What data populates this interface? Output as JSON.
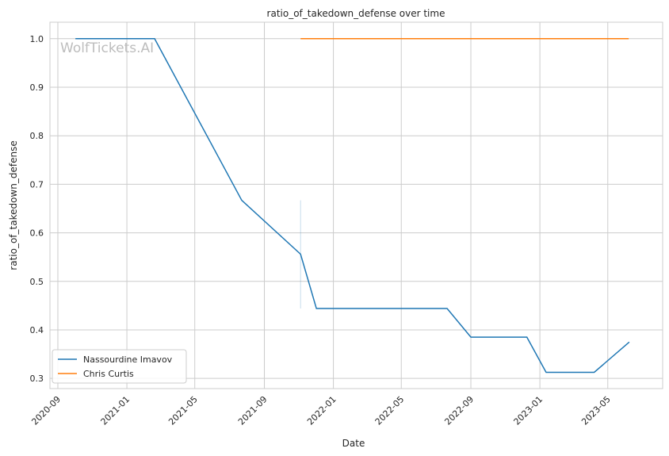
{
  "chart_data": {
    "type": "line",
    "title": "ratio_of_takedown_defense over time",
    "xlabel": "Date",
    "ylabel": "ratio_of_takedown_defense",
    "watermark": "WolfTickets.AI",
    "xlim": [
      "2020-08-18",
      "2023-08-06"
    ],
    "ylim": [
      0.279,
      1.034
    ],
    "grid": true,
    "legend_placement": "lower-left",
    "x_ticks": [
      "2020-09",
      "2021-01",
      "2021-05",
      "2021-09",
      "2022-01",
      "2022-05",
      "2022-09",
      "2023-01",
      "2023-05"
    ],
    "y_ticks": [
      0.3,
      0.4,
      0.5,
      0.6,
      0.7,
      0.8,
      0.9,
      1.0
    ],
    "series": [
      {
        "name": "Nassourdine Imavov",
        "color": "#1f77b4",
        "x": [
          "2020-10-02",
          "2021-02-19",
          "2021-07-23",
          "2021-11-04",
          "2021-12-02",
          "2022-07-21",
          "2022-09-01",
          "2022-12-09",
          "2023-01-12",
          "2023-04-07",
          "2023-06-08"
        ],
        "y": [
          1.0,
          1.0,
          0.667,
          0.556,
          0.444,
          0.444,
          0.385,
          0.385,
          0.3125,
          0.3125,
          0.375
        ],
        "band": {
          "x": "2021-11-04",
          "low": 0.444,
          "high": 0.667
        }
      },
      {
        "name": "Chris Curtis",
        "color": "#ff7f0e",
        "x": [
          "2021-11-04",
          "2023-06-07"
        ],
        "y": [
          1.0,
          1.0
        ]
      }
    ]
  }
}
